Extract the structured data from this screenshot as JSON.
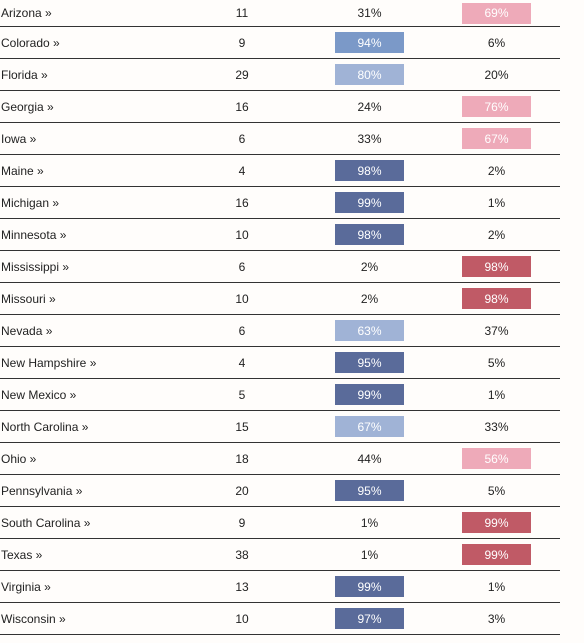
{
  "table": {
    "rows": [
      {
        "state": "Arizona »",
        "votes": "11",
        "dem": "31%",
        "rep": "69%",
        "dem_color": "",
        "rep_color": "#eeaab9"
      },
      {
        "state": "Colorado »",
        "votes": "9",
        "dem": "94%",
        "rep": "6%",
        "dem_color": "#7b99c8",
        "rep_color": ""
      },
      {
        "state": "Florida »",
        "votes": "29",
        "dem": "80%",
        "rep": "20%",
        "dem_color": "#a0b3d6",
        "rep_color": ""
      },
      {
        "state": "Georgia »",
        "votes": "16",
        "dem": "24%",
        "rep": "76%",
        "dem_color": "",
        "rep_color": "#eeaab9"
      },
      {
        "state": "Iowa »",
        "votes": "6",
        "dem": "33%",
        "rep": "67%",
        "dem_color": "",
        "rep_color": "#eeaab9"
      },
      {
        "state": "Maine »",
        "votes": "4",
        "dem": "98%",
        "rep": "2%",
        "dem_color": "#5a6b9a",
        "rep_color": ""
      },
      {
        "state": "Michigan »",
        "votes": "16",
        "dem": "99%",
        "rep": "1%",
        "dem_color": "#5a6b9a",
        "rep_color": ""
      },
      {
        "state": "Minnesota »",
        "votes": "10",
        "dem": "98%",
        "rep": "2%",
        "dem_color": "#5a6b9a",
        "rep_color": ""
      },
      {
        "state": "Mississippi »",
        "votes": "6",
        "dem": "2%",
        "rep": "98%",
        "dem_color": "",
        "rep_color": "#c05a66"
      },
      {
        "state": "Missouri »",
        "votes": "10",
        "dem": "2%",
        "rep": "98%",
        "dem_color": "",
        "rep_color": "#c05a66"
      },
      {
        "state": "Nevada »",
        "votes": "6",
        "dem": "63%",
        "rep": "37%",
        "dem_color": "#a0b3d6",
        "rep_color": ""
      },
      {
        "state": "New Hampshire »",
        "votes": "4",
        "dem": "95%",
        "rep": "5%",
        "dem_color": "#5a6b9a",
        "rep_color": ""
      },
      {
        "state": "New Mexico »",
        "votes": "5",
        "dem": "99%",
        "rep": "1%",
        "dem_color": "#5a6b9a",
        "rep_color": ""
      },
      {
        "state": "North Carolina »",
        "votes": "15",
        "dem": "67%",
        "rep": "33%",
        "dem_color": "#a0b3d6",
        "rep_color": ""
      },
      {
        "state": "Ohio »",
        "votes": "18",
        "dem": "44%",
        "rep": "56%",
        "dem_color": "",
        "rep_color": "#eeaab9"
      },
      {
        "state": "Pennsylvania »",
        "votes": "20",
        "dem": "95%",
        "rep": "5%",
        "dem_color": "#5a6b9a",
        "rep_color": ""
      },
      {
        "state": "South Carolina »",
        "votes": "9",
        "dem": "1%",
        "rep": "99%",
        "dem_color": "",
        "rep_color": "#c05a66"
      },
      {
        "state": "Texas »",
        "votes": "38",
        "dem": "1%",
        "rep": "99%",
        "dem_color": "",
        "rep_color": "#c05a66"
      },
      {
        "state": "Virginia »",
        "votes": "13",
        "dem": "99%",
        "rep": "1%",
        "dem_color": "#5a6b9a",
        "rep_color": ""
      },
      {
        "state": "Wisconsin »",
        "votes": "10",
        "dem": "97%",
        "rep": "3%",
        "dem_color": "#5a6b9a",
        "rep_color": ""
      }
    ]
  }
}
